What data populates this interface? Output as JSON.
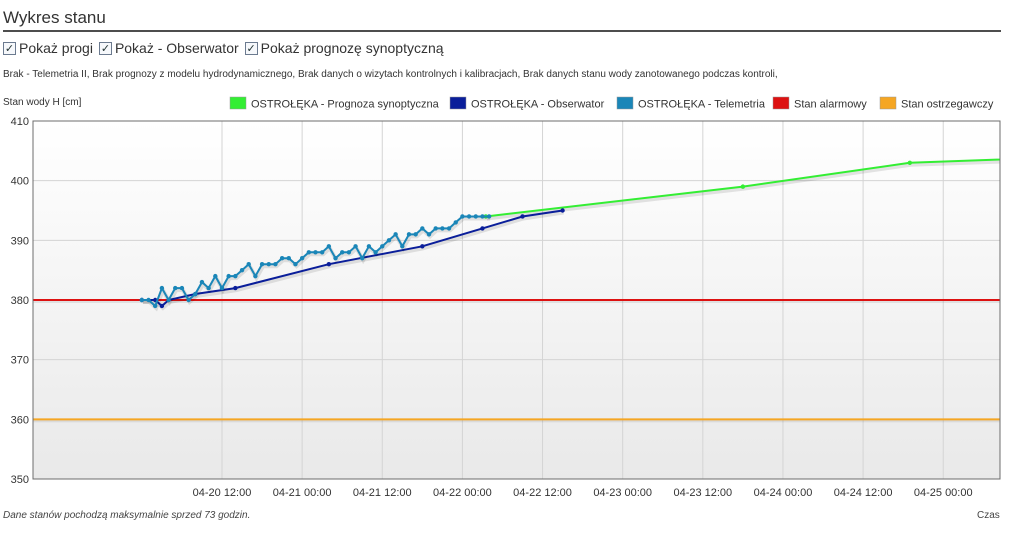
{
  "header": {
    "title": "Wykres stanu"
  },
  "options": [
    {
      "label": "Pokaż progi",
      "checked": true
    },
    {
      "label": "Pokaż - Obserwator",
      "checked": true
    },
    {
      "label": "Pokaż prognozę synoptyczną",
      "checked": true
    }
  ],
  "note": "Brak - Telemetria II, Brak prognozy z modelu hydrodynamicznego, Brak danych o wizytach kontrolnych i kalibracjach, Brak danych stanu wody zanotowanego podczas kontroli,",
  "footer": {
    "left": "Dane stanów pochodzą maksymalnie sprzed 73 godzin.",
    "right": "Czas"
  },
  "chart_data": {
    "type": "line",
    "ylabel": "Stan wody H [cm]",
    "xlabel": "Czas",
    "ylim": [
      350,
      410
    ],
    "yticks": [
      350,
      360,
      370,
      380,
      390,
      400,
      410
    ],
    "x_unit": "hours since 04-20 00:00",
    "xlim": [
      -16.3,
      128.5
    ],
    "xticks": [
      {
        "x": 12,
        "label": "04-20 12:00"
      },
      {
        "x": 24,
        "label": "04-21 00:00"
      },
      {
        "x": 36,
        "label": "04-21 12:00"
      },
      {
        "x": 48,
        "label": "04-22 00:00"
      },
      {
        "x": 60,
        "label": "04-22 12:00"
      },
      {
        "x": 72,
        "label": "04-23 00:00"
      },
      {
        "x": 84,
        "label": "04-23 12:00"
      },
      {
        "x": 96,
        "label": "04-24 00:00"
      },
      {
        "x": 108,
        "label": "04-24 12:00"
      },
      {
        "x": 120,
        "label": "04-25 00:00"
      }
    ],
    "grid": true,
    "legend_position": "top",
    "series": [
      {
        "name": "OSTROŁĘKA - Prognoza synoptyczna",
        "color": "#33ee33",
        "x": [
          51.5,
          90,
          115,
          140
        ],
        "y": [
          394,
          399,
          403,
          404
        ]
      },
      {
        "name": "OSTROŁĘKA - Obserwator",
        "color": "#0a1e9a",
        "x": [
          0,
          2,
          3,
          4,
          8,
          14,
          28,
          42,
          51,
          57,
          63
        ],
        "y": [
          380,
          380,
          379,
          380,
          381,
          382,
          386,
          389,
          392,
          394,
          395
        ]
      },
      {
        "name": "OSTROŁĘKA - Telemetria",
        "color": "#1a86b8",
        "x": [
          0,
          1,
          2,
          3,
          4,
          5,
          6,
          7,
          8,
          9,
          10,
          11,
          12,
          13,
          14,
          15,
          16,
          17,
          18,
          19,
          20,
          21,
          22,
          23,
          24,
          25,
          26,
          27,
          28,
          29,
          30,
          31,
          32,
          33,
          34,
          35,
          36,
          37,
          38,
          39,
          40,
          41,
          42,
          43,
          44,
          45,
          46,
          47,
          48,
          49,
          50,
          51,
          52
        ],
        "y": [
          380,
          380,
          379,
          382,
          380,
          382,
          382,
          380,
          381,
          383,
          382,
          384,
          382,
          384,
          384,
          385,
          386,
          384,
          386,
          386,
          386,
          387,
          387,
          386,
          387,
          388,
          388,
          388,
          389,
          387,
          388,
          388,
          389,
          387,
          389,
          388,
          389,
          390,
          391,
          389,
          391,
          391,
          392,
          391,
          392,
          392,
          392,
          393,
          394,
          394,
          394,
          394,
          394
        ]
      },
      {
        "name": "Stan alarmowy",
        "color": "#dd1111",
        "threshold": 380
      },
      {
        "name": "Stan ostrzegawczy",
        "color": "#f5a623",
        "threshold": 360
      }
    ]
  }
}
